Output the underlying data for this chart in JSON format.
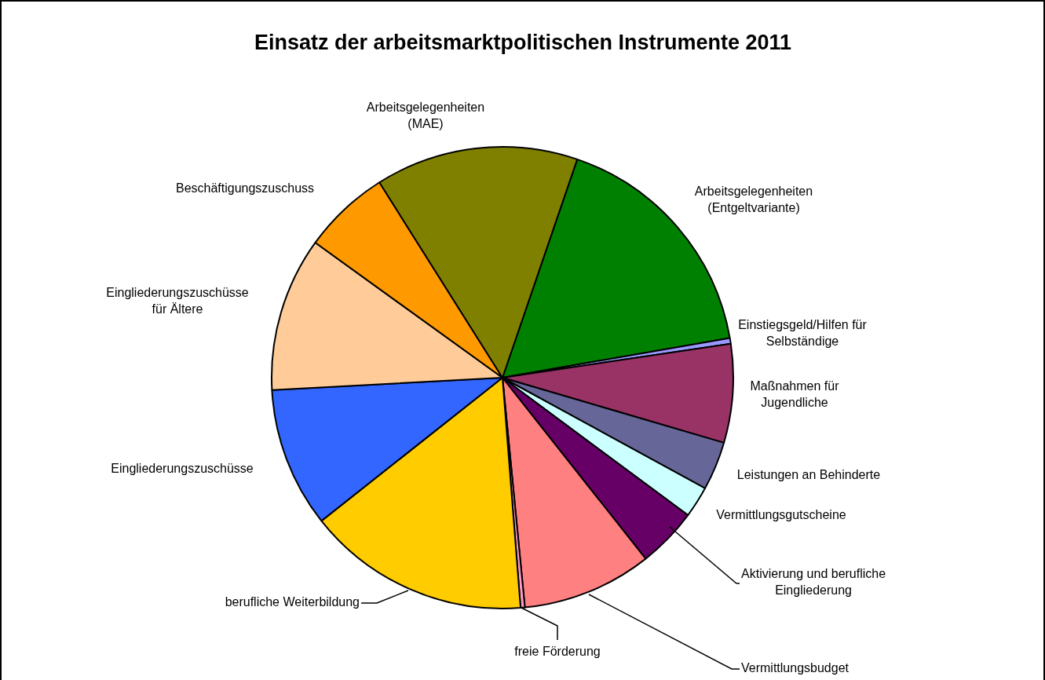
{
  "chart_data": {
    "type": "pie",
    "title": "Einsatz der arbeitsmarktpolitischen Instrumente 2011",
    "categories": [
      "Arbeitsgelegenheiten (Entgeltvariante)",
      "Einstiegsgeld/Hilfen für Selbständige",
      "Maßnahmen für Jugendliche",
      "Leistungen an Behinderte",
      "Vermittlungsgutscheine",
      "Aktivierung und berufliche Eingliederung",
      "Vermittlungsbudget",
      "freie Förderung",
      "berufliche Weiterbildung",
      "Eingliederungszuschüsse",
      "Eingliederungszuschüsse für Ältere",
      "Beschäftigungszuschuss",
      "Arbeitsgelegenheiten (MAE)"
    ],
    "values": [
      17.0,
      0.4,
      6.9,
      3.4,
      2.2,
      4.2,
      9.1,
      0.3,
      15.6,
      9.8,
      10.8,
      6.1,
      14.2
    ],
    "colors": [
      "#008000",
      "#9999ff",
      "#993366",
      "#666699",
      "#ccffff",
      "#660066",
      "#ff8080",
      "#ff99cc",
      "#ffcc00",
      "#3366ff",
      "#ffcc99",
      "#ff9900",
      "#808000"
    ],
    "legend": false
  }
}
